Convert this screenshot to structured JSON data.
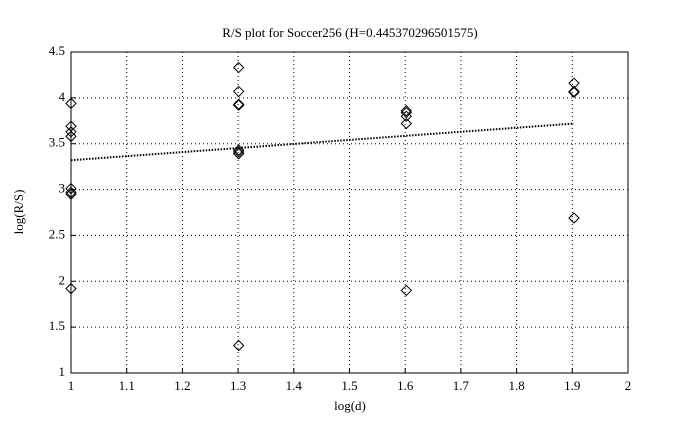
{
  "chart_data": {
    "type": "scatter",
    "title": "R/S plot for Soccer256 (H=0.445370296501575)",
    "x_label": "log(d)",
    "y_label": "log(R/S)",
    "xlim": [
      1,
      2
    ],
    "xticks": [
      1,
      1.1,
      1.2,
      1.3,
      1.4,
      1.5,
      1.6,
      1.7,
      1.8,
      1.9,
      2
    ],
    "ylim": [
      1,
      4.5
    ],
    "yticks": [
      1,
      1.5,
      2,
      2.5,
      3,
      3.5,
      4,
      4.5
    ],
    "grid": true,
    "series": [
      {
        "type": "scatter",
        "color": "#000000",
        "x": [
          1,
          1,
          1,
          1,
          1,
          1,
          1,
          1,
          1.301,
          1.301,
          1.301,
          1.301,
          1.301,
          1.301,
          1.301,
          1.301,
          1.602,
          1.602,
          1.602,
          1.602,
          1.602,
          1.903,
          1.903,
          1.903,
          1.903
        ],
        "values": [
          3.94,
          3.69,
          3.63,
          3.58,
          3.01,
          2.97,
          2.95,
          1.92,
          4.33,
          4.07,
          3.93,
          3.92,
          3.43,
          3.41,
          3.39,
          1.3,
          3.86,
          3.84,
          3.8,
          3.72,
          1.9,
          4.16,
          4.07,
          4.06,
          2.69
        ]
      },
      {
        "type": "line",
        "color": "#000000",
        "x": [
          1,
          1.903
        ],
        "values": [
          3.32,
          3.72
        ]
      }
    ]
  }
}
